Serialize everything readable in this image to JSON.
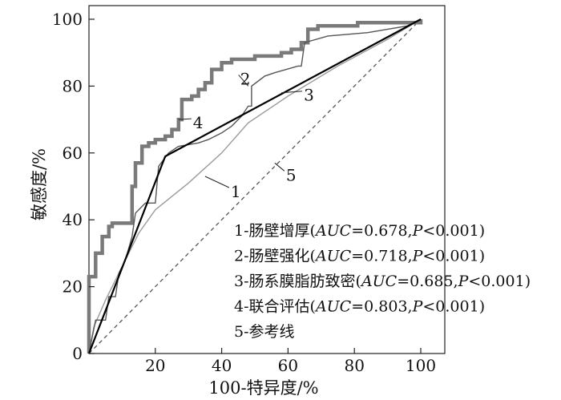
{
  "chart_data": {
    "type": "line",
    "title": "",
    "xlabel": "100-特异度/%",
    "ylabel": "敏感度/%",
    "xlim": [
      0,
      100
    ],
    "ylim": [
      0,
      100
    ],
    "xticks": [
      "20",
      "40",
      "60",
      "80",
      "100"
    ],
    "yticks": [
      "0",
      "20",
      "40",
      "60",
      "80",
      "100"
    ],
    "grid": false,
    "legend_position": "bottom-right",
    "legend": [
      {
        "num": "1",
        "name": "肠壁增厚",
        "stat": "AUC=0.678, P<0.001"
      },
      {
        "num": "2",
        "name": "肠壁强化",
        "stat": "AUC=0.718, P<0.001"
      },
      {
        "num": "3",
        "name": "肠系膜脂肪致密",
        "stat": "AUC=0.685, P<0.001"
      },
      {
        "num": "4",
        "name": "联合评估",
        "stat": "AUC=0.803, P<0.001"
      },
      {
        "num": "5",
        "name": "参考线",
        "stat": ""
      }
    ],
    "series": [
      {
        "label": "1",
        "color": "#9a9a9a",
        "style": "solid-thin",
        "points": [
          [
            0,
            0
          ],
          [
            1.5,
            8
          ],
          [
            5,
            16
          ],
          [
            10,
            26
          ],
          [
            15,
            36
          ],
          [
            20,
            43
          ],
          [
            30,
            51
          ],
          [
            40,
            60
          ],
          [
            48,
            69
          ],
          [
            60,
            77
          ],
          [
            75,
            86
          ],
          [
            90,
            94
          ],
          [
            100,
            100
          ]
        ]
      },
      {
        "label": "2",
        "color": "#555555",
        "style": "step-thin",
        "points": [
          [
            0,
            0
          ],
          [
            1,
            5
          ],
          [
            2,
            10
          ],
          [
            5,
            10
          ],
          [
            6,
            17
          ],
          [
            8,
            17
          ],
          [
            9,
            24
          ],
          [
            11,
            28
          ],
          [
            13,
            35
          ],
          [
            14,
            42
          ],
          [
            17,
            45
          ],
          [
            20,
            45
          ],
          [
            21,
            56
          ],
          [
            24,
            60
          ],
          [
            27,
            62
          ],
          [
            33,
            63
          ],
          [
            36,
            64
          ],
          [
            40,
            66
          ],
          [
            43,
            68
          ],
          [
            46,
            71
          ],
          [
            48,
            74
          ],
          [
            49,
            74
          ],
          [
            49,
            80
          ],
          [
            53,
            83
          ],
          [
            56,
            84
          ],
          [
            63,
            86
          ],
          [
            64,
            86
          ],
          [
            65,
            93
          ],
          [
            72,
            95
          ],
          [
            84,
            96
          ],
          [
            96,
            98
          ],
          [
            100,
            100
          ]
        ]
      },
      {
        "label": "3",
        "color": "#000000",
        "style": "solid-medium",
        "points": [
          [
            0,
            0
          ],
          [
            23,
            59
          ],
          [
            100,
            100
          ]
        ]
      },
      {
        "label": "4",
        "color": "#7a7a7a",
        "style": "step-thick",
        "points": [
          [
            0,
            0
          ],
          [
            0,
            23
          ],
          [
            2,
            23
          ],
          [
            2,
            30
          ],
          [
            4,
            30
          ],
          [
            4,
            35
          ],
          [
            6,
            35
          ],
          [
            6,
            38
          ],
          [
            7,
            38
          ],
          [
            7,
            39
          ],
          [
            13,
            39
          ],
          [
            13,
            50
          ],
          [
            14,
            50
          ],
          [
            14,
            57
          ],
          [
            16,
            57
          ],
          [
            16,
            62
          ],
          [
            18,
            62
          ],
          [
            18,
            63
          ],
          [
            20,
            63
          ],
          [
            20,
            64
          ],
          [
            23,
            64
          ],
          [
            23,
            65
          ],
          [
            25,
            65
          ],
          [
            25,
            67
          ],
          [
            27,
            67
          ],
          [
            27,
            70
          ],
          [
            28,
            70
          ],
          [
            28,
            76
          ],
          [
            31,
            76
          ],
          [
            31,
            77
          ],
          [
            33,
            77
          ],
          [
            33,
            79
          ],
          [
            35,
            79
          ],
          [
            35,
            81
          ],
          [
            37,
            81
          ],
          [
            37,
            85
          ],
          [
            40,
            85
          ],
          [
            40,
            87
          ],
          [
            43,
            87
          ],
          [
            43,
            88
          ],
          [
            50,
            88
          ],
          [
            50,
            89
          ],
          [
            58,
            89
          ],
          [
            58,
            90
          ],
          [
            61,
            90
          ],
          [
            61,
            91
          ],
          [
            64,
            91
          ],
          [
            64,
            93
          ],
          [
            66,
            93
          ],
          [
            66,
            97
          ],
          [
            69,
            97
          ],
          [
            69,
            98
          ],
          [
            81,
            98
          ],
          [
            81,
            99
          ],
          [
            100,
            99
          ],
          [
            100,
            100
          ]
        ]
      },
      {
        "label": "5",
        "color": "#555555",
        "style": "dashed",
        "points": [
          [
            0,
            0
          ],
          [
            100,
            100
          ]
        ]
      }
    ],
    "annotations": [
      {
        "text": "1",
        "anchor": [
          35,
          53
        ]
      },
      {
        "text": "2",
        "anchor": [
          48,
          80
        ]
      },
      {
        "text": "3",
        "anchor": [
          58,
          78
        ]
      },
      {
        "text": "4",
        "anchor": [
          27,
          70
        ]
      },
      {
        "text": "5",
        "anchor": [
          56,
          57
        ]
      }
    ]
  }
}
